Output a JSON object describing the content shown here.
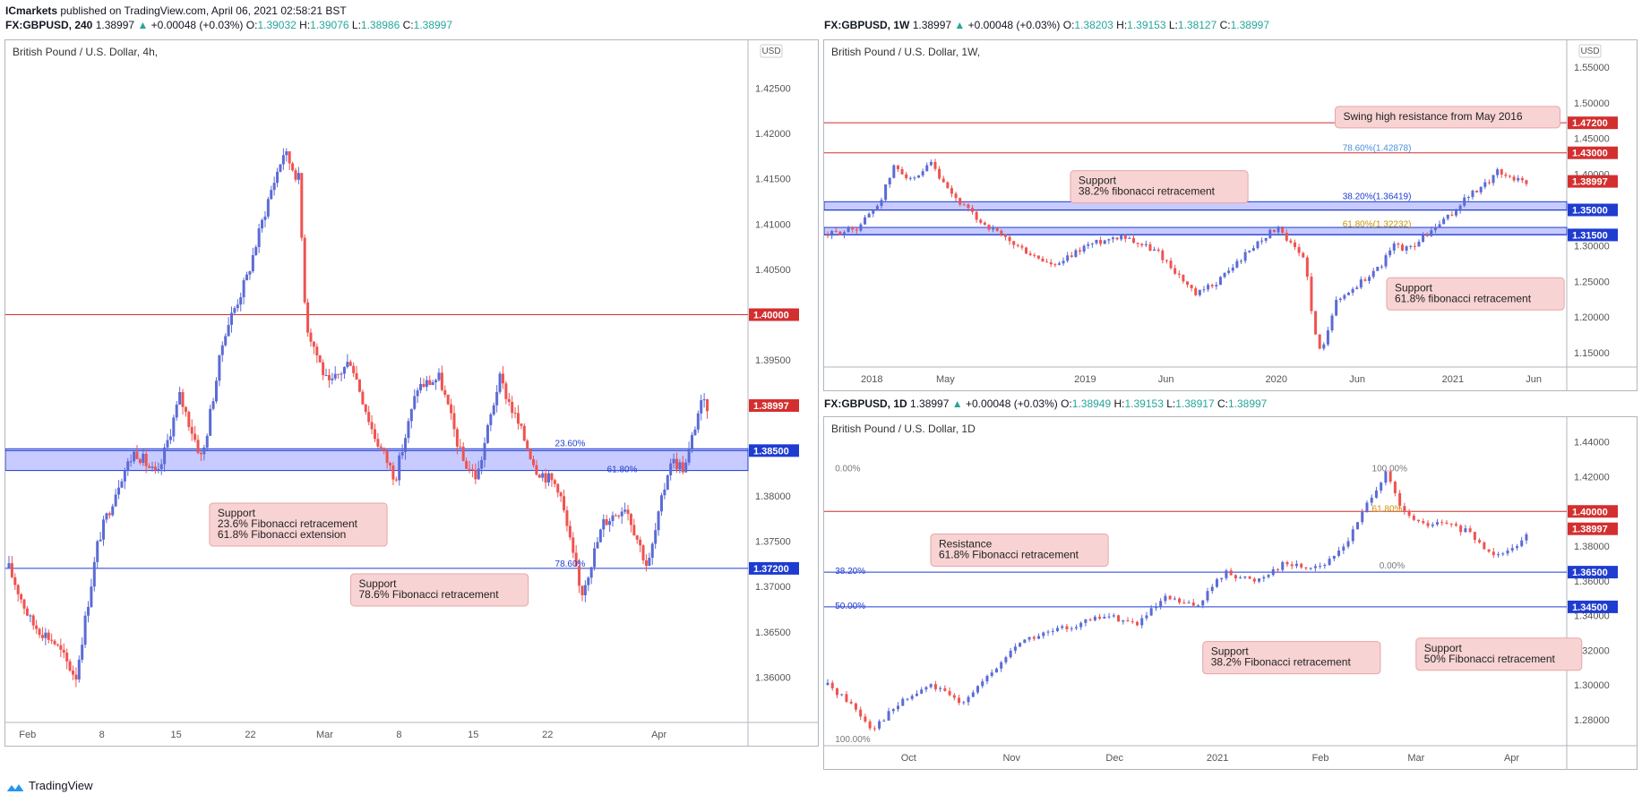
{
  "publisher": {
    "name": "ICmarkets",
    "text": "published on TradingView.com, April 06, 2021 02:58:21 BST"
  },
  "footer": {
    "brand": "TradingView"
  },
  "headers": {
    "left": {
      "symbol": "FX:GBPUSD, 240",
      "price": "1.38997",
      "change": "+0.00048 (+0.03%)",
      "o": "1.39032",
      "h": "1.39076",
      "l": "1.38986",
      "c": "1.38997"
    },
    "topright": {
      "symbol": "FX:GBPUSD, 1W",
      "price": "1.38997",
      "change": "+0.00048 (+0.03%)",
      "o": "1.38203",
      "h": "1.39153",
      "l": "1.38127",
      "c": "1.38997"
    },
    "bottomright": {
      "symbol": "FX:GBPUSD, 1D",
      "price": "1.38997",
      "change": "+0.00048 (+0.03%)",
      "o": "1.38949",
      "h": "1.39153",
      "l": "1.38917",
      "c": "1.38997"
    }
  },
  "colors": {
    "up": "#5b6bd6",
    "down": "#ef5350",
    "res": "#d32f2f",
    "sup": "#1e3cd0",
    "zone": "rgba(130,140,255,0.45)",
    "callout": "#f8d3d3",
    "callout_border": "#e8a5a5"
  },
  "chart_data": [
    {
      "id": "left",
      "type": "candlestick",
      "title": "British Pound / U.S. Dollar, 4h,",
      "currency_label": "USD",
      "ylim": [
        1.355,
        1.4285
      ],
      "y_ticks": [
        "1.42500",
        "1.42000",
        "1.41500",
        "1.41000",
        "1.40500",
        "1.40000",
        "1.39500",
        "1.39000",
        "1.38500",
        "1.38000",
        "1.37500",
        "1.37000",
        "1.36500",
        "1.36000"
      ],
      "x_ticks": [
        "Feb",
        "8",
        "15",
        "22",
        "Mar",
        "8",
        "15",
        "22",
        "Apr"
      ],
      "xlim": [
        0,
        99
      ],
      "x_tick_pos": [
        2.5,
        12.5,
        22.5,
        32.5,
        42.5,
        52.5,
        62.5,
        72.5,
        87.5
      ],
      "path": [
        [
          0,
          1.372
        ],
        [
          3,
          1.366
        ],
        [
          6,
          1.364
        ],
        [
          9,
          1.36
        ],
        [
          12,
          1.375
        ],
        [
          15,
          1.382
        ],
        [
          17,
          1.385
        ],
        [
          20,
          1.382
        ],
        [
          23,
          1.391
        ],
        [
          26,
          1.384
        ],
        [
          29,
          1.398
        ],
        [
          32,
          1.404
        ],
        [
          35,
          1.413
        ],
        [
          37,
          1.418
        ],
        [
          39,
          1.415
        ],
        [
          40,
          1.399
        ],
        [
          43,
          1.392
        ],
        [
          46,
          1.395
        ],
        [
          49,
          1.387
        ],
        [
          52,
          1.382
        ],
        [
          55,
          1.392
        ],
        [
          58,
          1.393
        ],
        [
          61,
          1.384
        ],
        [
          63,
          1.382
        ],
        [
          66,
          1.393
        ],
        [
          68,
          1.389
        ],
        [
          71,
          1.383
        ],
        [
          74,
          1.381
        ],
        [
          77,
          1.369
        ],
        [
          80,
          1.377
        ],
        [
          83,
          1.379
        ],
        [
          86,
          1.372
        ],
        [
          89,
          1.384
        ],
        [
          91,
          1.383
        ],
        [
          93,
          1.39
        ],
        [
          94,
          1.3899
        ]
      ],
      "price_tags": [
        {
          "label": "1.40000",
          "value": 1.4,
          "kind": "res"
        },
        {
          "label": "1.38997",
          "value": 1.38997,
          "kind": "current"
        },
        {
          "label": "1.38500",
          "value": 1.385,
          "kind": "sup"
        },
        {
          "label": "1.37200",
          "value": 1.372,
          "kind": "sup"
        }
      ],
      "zone": [
        1.3828,
        1.3852
      ],
      "fib_labels": [
        {
          "text": "23.60%",
          "x": 73.5,
          "y": 1.3855
        },
        {
          "text": "61.80%",
          "x": 80.5,
          "y": 1.3826
        },
        {
          "text": "78.60%",
          "x": 73.5,
          "y": 1.3722
        }
      ],
      "callouts": [
        {
          "lines": [
            "Support",
            "23.6% Fibonacci retracement",
            "61.8% Fibonacci extension"
          ],
          "x": 27,
          "y": 1.3792
        },
        {
          "lines": [
            "Support",
            "78.6% Fibonacci retracement"
          ],
          "x": 46,
          "y": 1.3714
        }
      ]
    },
    {
      "id": "topright",
      "type": "candlestick",
      "title": "British Pound / U.S. Dollar, 1W,",
      "currency_label": "USD",
      "ylim": [
        1.13,
        1.565
      ],
      "y_ticks": [
        "1.55000",
        "1.50000",
        "1.45000",
        "1.40000",
        "1.35000",
        "1.30000",
        "1.25000",
        "1.20000",
        "1.15000"
      ],
      "x_ticks": [
        "2018",
        "May",
        "2019",
        "Jun",
        "2020",
        "Jun",
        "2021",
        "Jun"
      ],
      "xlim": [
        0,
        100
      ],
      "x_tick_pos": [
        6,
        16,
        35,
        46,
        61,
        72,
        85,
        96
      ],
      "path": [
        [
          0,
          1.315
        ],
        [
          4,
          1.325
        ],
        [
          7,
          1.36
        ],
        [
          9,
          1.41
        ],
        [
          12,
          1.39
        ],
        [
          14,
          1.415
        ],
        [
          16,
          1.38
        ],
        [
          20,
          1.34
        ],
        [
          24,
          1.31
        ],
        [
          28,
          1.285
        ],
        [
          31,
          1.27
        ],
        [
          35,
          1.3
        ],
        [
          40,
          1.315
        ],
        [
          45,
          1.29
        ],
        [
          48,
          1.255
        ],
        [
          50,
          1.23
        ],
        [
          53,
          1.25
        ],
        [
          56,
          1.28
        ],
        [
          59,
          1.31
        ],
        [
          61,
          1.325
        ],
        [
          63,
          1.3
        ],
        [
          65,
          1.28
        ],
        [
          66,
          1.185
        ],
        [
          67,
          1.15
        ],
        [
          69,
          1.22
        ],
        [
          72,
          1.245
        ],
        [
          75,
          1.27
        ],
        [
          77,
          1.3
        ],
        [
          79,
          1.295
        ],
        [
          82,
          1.32
        ],
        [
          85,
          1.345
        ],
        [
          87,
          1.37
        ],
        [
          89,
          1.38
        ],
        [
          91,
          1.405
        ],
        [
          93,
          1.395
        ],
        [
          95,
          1.39
        ]
      ],
      "price_tags": [
        {
          "label": "1.47200",
          "value": 1.472,
          "kind": "res"
        },
        {
          "label": "1.43000",
          "value": 1.43,
          "kind": "res"
        },
        {
          "label": "1.38997",
          "value": 1.38997,
          "kind": "current"
        },
        {
          "label": "1.35000",
          "value": 1.35,
          "kind": "sup"
        },
        {
          "label": "1.31500",
          "value": 1.315,
          "kind": "sup"
        }
      ],
      "zones": [
        [
          1.3497,
          1.3615
        ],
        [
          1.3155,
          1.3255
        ]
      ],
      "fib_labels": [
        {
          "text": "78.60%(1.42878)",
          "x": 70,
          "y": 1.433,
          "color": "#4a90d9"
        },
        {
          "text": "38.20%(1.36419)",
          "x": 70,
          "y": 1.365,
          "color": "#1e3cd0"
        },
        {
          "text": "61.80%(1.32232)",
          "x": 70,
          "y": 1.326,
          "color": "#c99400"
        }
      ],
      "callouts": [
        {
          "lines": [
            "Swing high resistance from May 2016"
          ],
          "x": 69,
          "y": 1.495
        },
        {
          "lines": [
            "Support",
            "38.2% fibonacci retracement"
          ],
          "x": 33,
          "y": 1.405
        },
        {
          "lines": [
            "Support",
            "61.8% fibonacci retracement"
          ],
          "x": 76,
          "y": 1.255
        }
      ]
    },
    {
      "id": "bottomright",
      "type": "candlestick",
      "title": "British Pound / U.S. Dollar, 1D",
      "currency_label": "",
      "ylim": [
        1.265,
        1.445
      ],
      "y_ticks": [
        "1.44000",
        "1.42000",
        "1.40000",
        "1.38000",
        "1.36000",
        "1.34000",
        "1.32000",
        "1.30000",
        "1.28000"
      ],
      "x_ticks": [
        "Oct",
        "Nov",
        "Dec",
        "2021",
        "Feb",
        "Mar",
        "Apr"
      ],
      "xlim": [
        0,
        100
      ],
      "x_tick_pos": [
        11,
        25,
        39,
        53,
        67,
        80,
        93
      ],
      "path": [
        [
          0,
          1.3
        ],
        [
          3,
          1.29
        ],
        [
          6,
          1.275
        ],
        [
          10,
          1.29
        ],
        [
          14,
          1.3
        ],
        [
          18,
          1.29
        ],
        [
          22,
          1.305
        ],
        [
          26,
          1.325
        ],
        [
          30,
          1.33
        ],
        [
          34,
          1.335
        ],
        [
          38,
          1.34
        ],
        [
          42,
          1.335
        ],
        [
          46,
          1.35
        ],
        [
          50,
          1.345
        ],
        [
          54,
          1.365
        ],
        [
          58,
          1.36
        ],
        [
          62,
          1.37
        ],
        [
          65,
          1.368
        ],
        [
          68,
          1.37
        ],
        [
          71,
          1.385
        ],
        [
          74,
          1.41
        ],
        [
          76,
          1.422
        ],
        [
          78,
          1.4
        ],
        [
          81,
          1.392
        ],
        [
          84,
          1.393
        ],
        [
          87,
          1.388
        ],
        [
          90,
          1.376
        ],
        [
          93,
          1.378
        ],
        [
          95,
          1.388
        ]
      ],
      "price_tags": [
        {
          "label": "1.40000",
          "value": 1.4,
          "kind": "res"
        },
        {
          "label": "1.38997",
          "value": 1.38997,
          "kind": "current"
        },
        {
          "label": "1.36500",
          "value": 1.365,
          "kind": "sup"
        },
        {
          "label": "1.34500",
          "value": 1.345,
          "kind": "sup"
        }
      ],
      "fib_labels": [
        {
          "text": "0.00%",
          "x": 1,
          "y": 1.423,
          "color": "#777"
        },
        {
          "text": "100.00%",
          "x": 74,
          "y": 1.423,
          "color": "#777"
        },
        {
          "text": "61.80%",
          "x": 74,
          "y": 1.4,
          "color": "#c99400"
        },
        {
          "text": "0.00%",
          "x": 75,
          "y": 1.367,
          "color": "#777"
        },
        {
          "text": "38.20%",
          "x": 1,
          "y": 1.364,
          "color": "#1e3cd0"
        },
        {
          "text": "50.00%",
          "x": 1,
          "y": 1.344,
          "color": "#1e3cd0"
        },
        {
          "text": "100.00%",
          "x": 1,
          "y": 1.267,
          "color": "#777"
        }
      ],
      "callouts": [
        {
          "lines": [
            "Resistance",
            "61.8% Fibonacci retracement"
          ],
          "x": 14,
          "y": 1.387
        },
        {
          "lines": [
            "Support",
            "38.2% Fibonacci retracement"
          ],
          "x": 51,
          "y": 1.325
        },
        {
          "lines": [
            "Support",
            "50% Fibonacci retracement"
          ],
          "x": 80,
          "y": 1.327
        }
      ]
    }
  ]
}
